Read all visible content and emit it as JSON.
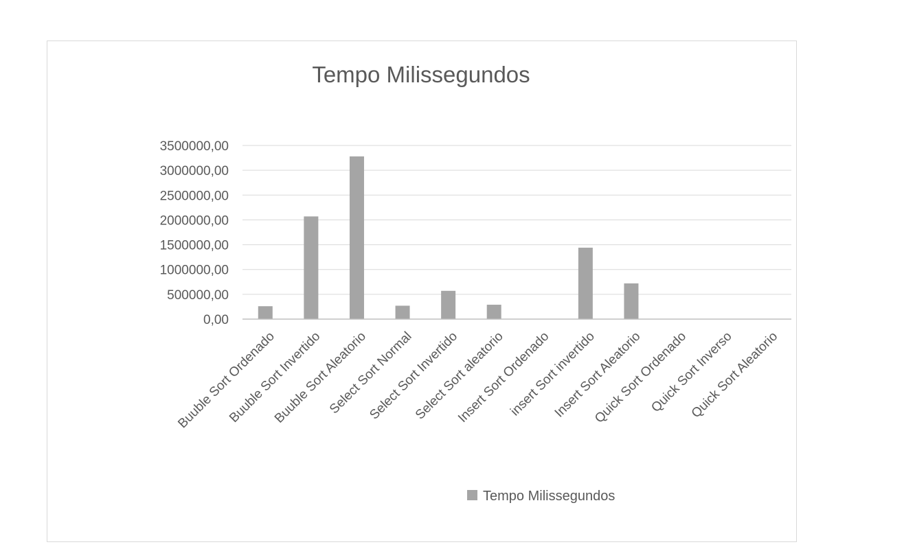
{
  "chart_data": {
    "type": "bar",
    "title": "Tempo Milissegundos",
    "xlabel": "",
    "ylabel": "",
    "categories": [
      "Buuble Sort Ordenado",
      "Buuble Sort Invertido",
      "Buuble Sort Aleatorio",
      "Select Sort Normal",
      "Select Sort Invertido",
      "Select Sort aleatorio",
      "Insert Sort Ordenado",
      "insert Sort invertido",
      "Insert Sort Aleatorio",
      "Quick Sort Ordenado",
      "Quick Sort Inverso",
      "Quick Sort Aleatorio"
    ],
    "series": [
      {
        "name": "Tempo Milissegundos",
        "color": "#a5a5a5",
        "values": [
          260000,
          2070000,
          3280000,
          270000,
          570000,
          290000,
          0,
          1440000,
          720000,
          0,
          0,
          0
        ]
      }
    ],
    "ylim": [
      0,
      3500000
    ],
    "yticks": [
      {
        "value": 0,
        "label": "0,00"
      },
      {
        "value": 500000,
        "label": "500000,00"
      },
      {
        "value": 1000000,
        "label": "1000000,00"
      },
      {
        "value": 1500000,
        "label": "1500000,00"
      },
      {
        "value": 2000000,
        "label": "2000000,00"
      },
      {
        "value": 2500000,
        "label": "2500000,00"
      },
      {
        "value": 3000000,
        "label": "3000000,00"
      },
      {
        "value": 3500000,
        "label": "3500000,00"
      }
    ],
    "grid": true,
    "legend_position": "bottom"
  }
}
